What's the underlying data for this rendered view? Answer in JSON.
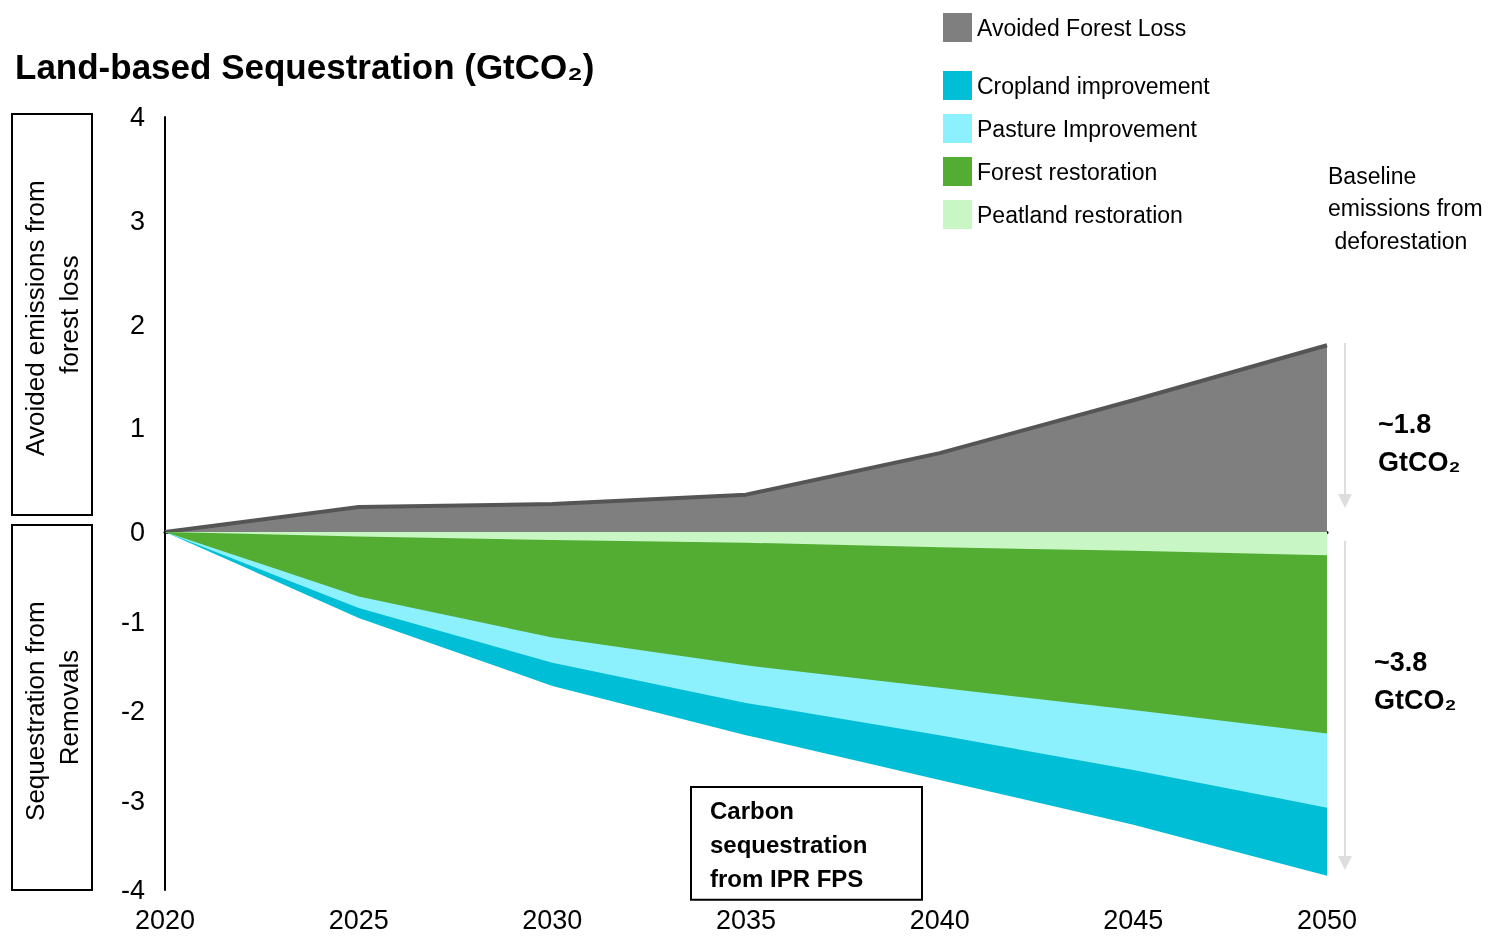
{
  "chart_data": [
    {
      "type": "area",
      "title": "Land-based Sequestration (GtCO₂)",
      "ylabel": "Avoided emissions from forest loss",
      "x": [
        2020,
        2025,
        2030,
        2035,
        2040,
        2045,
        2050
      ],
      "xlim": [
        2020,
        2050
      ],
      "xticks": [
        2020,
        2025,
        2030,
        2035,
        2040,
        2045,
        2050
      ],
      "ylim": [
        0,
        4
      ],
      "yticks": [
        0,
        1,
        2,
        3,
        4
      ],
      "tick_labels": "y",
      "legend": "top right",
      "grid": false,
      "series": [
        {
          "name": "Avoided Forest Loss",
          "color": "#7f7f7f",
          "values": [
            0,
            0.24,
            0.27,
            0.36,
            0.76,
            1.27,
            1.8
          ]
        }
      ],
      "annotations": [
        "Baseline emissions from deforestation",
        "~1.8 GtCO₂"
      ]
    },
    {
      "type": "area",
      "stacked": true,
      "ylabel": "Sequestration from Removals",
      "x": [
        2020,
        2025,
        2030,
        2035,
        2040,
        2045,
        2050
      ],
      "xlim": [
        2020,
        2050
      ],
      "xticks": [
        2020,
        2025,
        2030,
        2035,
        2040,
        2045,
        2050
      ],
      "ylim": [
        -4,
        0
      ],
      "yticks": [
        -4,
        -3,
        -2,
        -1
      ],
      "legend": "top right",
      "grid": false,
      "series": [
        {
          "name": "Peatland restoration",
          "color": "#c8f7c5",
          "values": [
            0,
            -0.05,
            -0.09,
            -0.12,
            -0.17,
            -0.21,
            -0.26
          ]
        },
        {
          "name": "Forest restoration",
          "color": "#52ad32",
          "values": [
            0,
            -0.67,
            -1.09,
            -1.37,
            -1.57,
            -1.78,
            -1.99
          ]
        },
        {
          "name": "Pasture Improvement",
          "color": "#8cf1fc",
          "values": [
            0,
            -0.13,
            -0.28,
            -0.42,
            -0.53,
            -0.67,
            -0.83
          ]
        },
        {
          "name": "Cropland improvement",
          "color": "#00bed6",
          "values": [
            0,
            -0.11,
            -0.26,
            -0.36,
            -0.5,
            -0.61,
            -0.76
          ]
        }
      ],
      "annotations": [
        "~3.8 GtCO₂",
        "Carbon sequestration from IPR FPS"
      ]
    }
  ]
}
